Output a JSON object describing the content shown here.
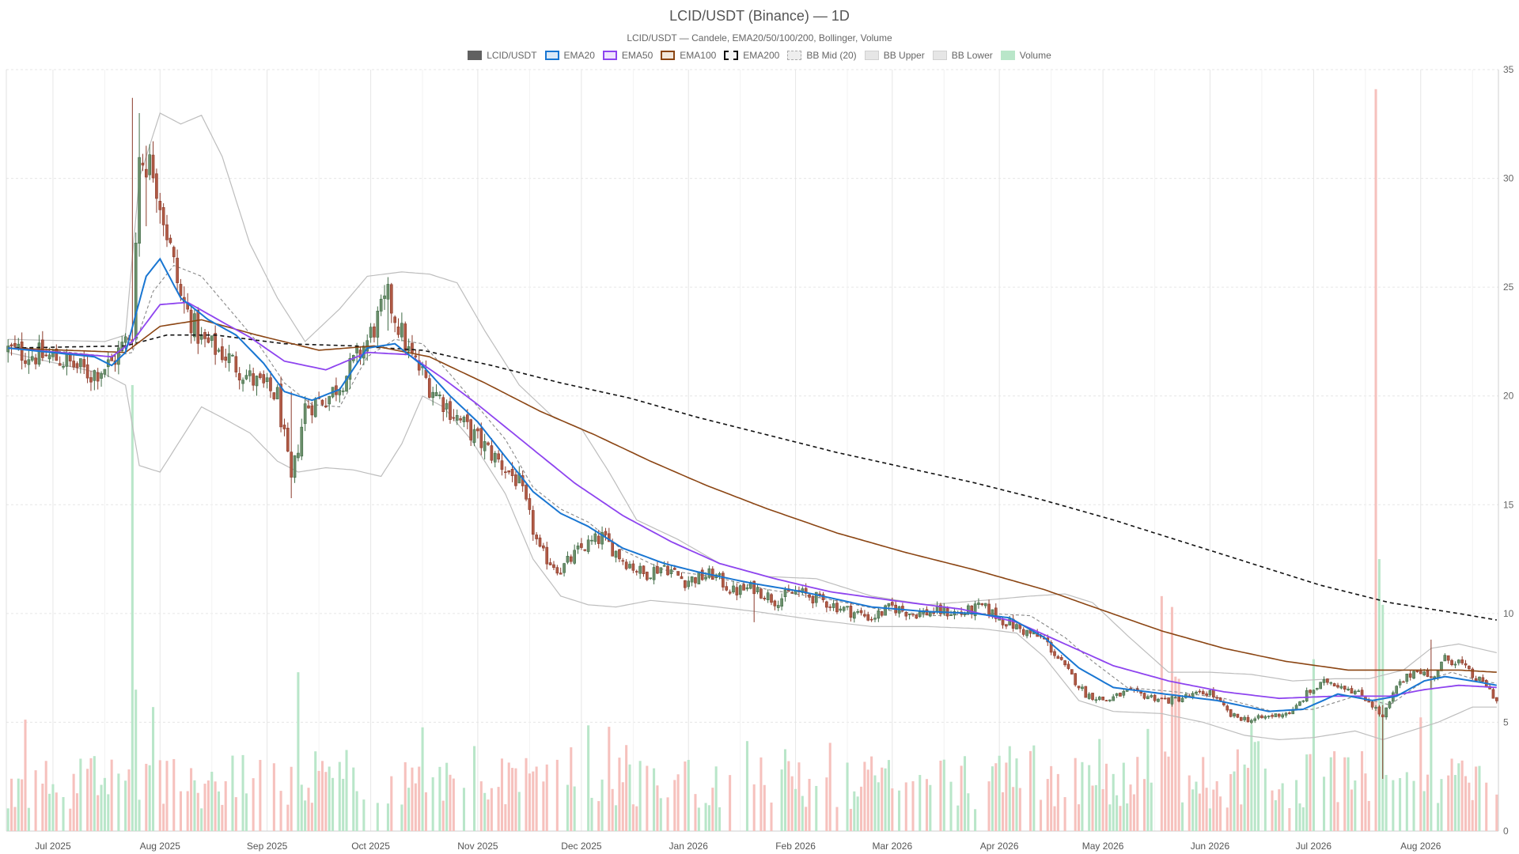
{
  "header": {
    "title": "LCID/USDT (Binance) — 1D",
    "subtitle": "LCID/USDT — Candele, EMA20/50/100/200, Bollinger, Volume"
  },
  "legend": [
    {
      "label": "LCID/USDT",
      "swatch": "candle"
    },
    {
      "label": "EMA20",
      "swatch": "ema20"
    },
    {
      "label": "EMA50",
      "swatch": "ema50"
    },
    {
      "label": "EMA100",
      "swatch": "ema100"
    },
    {
      "label": "EMA200",
      "swatch": "ema200"
    },
    {
      "label": "BB Mid (20)",
      "swatch": "bbmid"
    },
    {
      "label": "BB Upper",
      "swatch": "bbband"
    },
    {
      "label": "BB Lower",
      "swatch": "bbband"
    },
    {
      "label": "Volume",
      "swatch": "volume"
    }
  ],
  "colors": {
    "up": "#2e7d32",
    "down": "#c62828",
    "up_fill": "#6b8f6b",
    "down_fill": "#b05a45",
    "ema20": "#1976d2",
    "ema50": "#8e44ef",
    "ema100": "#8b4513",
    "ema200": "#111111",
    "bb": "#bdbdbd",
    "bbmid": "#888888",
    "vol_up": "#b9e6c9",
    "vol_down": "#f6c1bd",
    "grid": "#e6e6e6"
  },
  "chart_data": {
    "type": "candlestick",
    "interval": "1D",
    "ylim": [
      0,
      35
    ],
    "y_ticks": [
      0,
      5,
      10,
      15,
      20,
      25,
      30,
      35
    ],
    "x_tick_labels": [
      "Jul 2025",
      "Aug 2025",
      "Sep 2025",
      "Oct 2025",
      "Nov 2025",
      "Dec 2025",
      "Jan 2026",
      "Feb 2026",
      "Mar 2026",
      "Apr 2026",
      "May 2026",
      "Jun 2026",
      "Jul 2026",
      "Aug 2026"
    ],
    "x_tick_days": [
      13,
      44,
      75,
      105,
      136,
      166,
      197,
      228,
      256,
      287,
      317,
      348,
      378,
      409
    ],
    "day_count": 432,
    "close_anchors": [
      [
        0,
        22.1
      ],
      [
        15,
        21.7
      ],
      [
        24,
        21.0
      ],
      [
        30,
        21.5
      ],
      [
        36,
        23.0
      ],
      [
        38,
        31.0
      ],
      [
        42,
        30.5
      ],
      [
        46,
        27.5
      ],
      [
        50,
        24.5
      ],
      [
        56,
        22.5
      ],
      [
        62,
        22.0
      ],
      [
        70,
        20.8
      ],
      [
        78,
        20.0
      ],
      [
        82,
        16.0
      ],
      [
        86,
        19.5
      ],
      [
        93,
        20.0
      ],
      [
        98,
        21.0
      ],
      [
        104,
        22.5
      ],
      [
        110,
        24.5
      ],
      [
        116,
        22.0
      ],
      [
        122,
        20.5
      ],
      [
        130,
        19.0
      ],
      [
        136,
        18.0
      ],
      [
        142,
        17.0
      ],
      [
        148,
        16.0
      ],
      [
        154,
        12.8
      ],
      [
        160,
        12.0
      ],
      [
        166,
        13.0
      ],
      [
        172,
        13.5
      ],
      [
        178,
        12.5
      ],
      [
        184,
        11.8
      ],
      [
        190,
        12.2
      ],
      [
        196,
        11.5
      ],
      [
        204,
        11.8
      ],
      [
        210,
        11.0
      ],
      [
        216,
        11.2
      ],
      [
        222,
        10.6
      ],
      [
        228,
        11.0
      ],
      [
        234,
        10.7
      ],
      [
        242,
        10.2
      ],
      [
        250,
        9.8
      ],
      [
        256,
        10.3
      ],
      [
        262,
        10.0
      ],
      [
        270,
        10.1
      ],
      [
        276,
        10.0
      ],
      [
        282,
        10.3
      ],
      [
        288,
        9.7
      ],
      [
        294,
        9.2
      ],
      [
        300,
        8.8
      ],
      [
        306,
        7.5
      ],
      [
        312,
        6.3
      ],
      [
        318,
        6.0
      ],
      [
        324,
        6.4
      ],
      [
        330,
        6.2
      ],
      [
        336,
        6.0
      ],
      [
        342,
        6.2
      ],
      [
        348,
        6.4
      ],
      [
        354,
        5.3
      ],
      [
        360,
        5.1
      ],
      [
        366,
        5.3
      ],
      [
        372,
        5.5
      ],
      [
        376,
        6.3
      ],
      [
        382,
        6.9
      ],
      [
        388,
        6.6
      ],
      [
        394,
        6.0
      ],
      [
        398,
        5.2
      ],
      [
        402,
        6.6
      ],
      [
        408,
        7.5
      ],
      [
        412,
        7.0
      ],
      [
        416,
        7.9
      ],
      [
        420,
        7.8
      ],
      [
        424,
        7.1
      ],
      [
        428,
        6.7
      ],
      [
        431,
        6.0
      ]
    ],
    "ema20_anchors": [
      [
        0,
        22.2
      ],
      [
        25,
        21.8
      ],
      [
        30,
        21.4
      ],
      [
        34,
        22.0
      ],
      [
        40,
        25.5
      ],
      [
        44,
        26.3
      ],
      [
        50,
        24.5
      ],
      [
        58,
        23.5
      ],
      [
        66,
        22.8
      ],
      [
        74,
        21.5
      ],
      [
        80,
        20.2
      ],
      [
        88,
        19.8
      ],
      [
        96,
        20.3
      ],
      [
        104,
        22.2
      ],
      [
        112,
        22.4
      ],
      [
        120,
        21.4
      ],
      [
        128,
        20.0
      ],
      [
        136,
        18.8
      ],
      [
        144,
        17.2
      ],
      [
        152,
        15.6
      ],
      [
        160,
        14.6
      ],
      [
        168,
        14.0
      ],
      [
        178,
        13.0
      ],
      [
        190,
        12.3
      ],
      [
        200,
        11.9
      ],
      [
        215,
        11.4
      ],
      [
        230,
        11.0
      ],
      [
        250,
        10.3
      ],
      [
        265,
        10.1
      ],
      [
        280,
        10.0
      ],
      [
        290,
        9.8
      ],
      [
        300,
        8.9
      ],
      [
        310,
        7.5
      ],
      [
        320,
        6.6
      ],
      [
        335,
        6.3
      ],
      [
        350,
        6.0
      ],
      [
        365,
        5.5
      ],
      [
        375,
        5.6
      ],
      [
        385,
        6.3
      ],
      [
        395,
        6.0
      ],
      [
        402,
        6.2
      ],
      [
        410,
        6.9
      ],
      [
        416,
        7.1
      ],
      [
        424,
        6.9
      ],
      [
        431,
        6.7
      ]
    ],
    "ema50_anchors": [
      [
        0,
        22.2
      ],
      [
        30,
        21.8
      ],
      [
        36,
        22.5
      ],
      [
        44,
        24.2
      ],
      [
        52,
        24.3
      ],
      [
        62,
        23.4
      ],
      [
        70,
        22.7
      ],
      [
        80,
        21.6
      ],
      [
        92,
        21.2
      ],
      [
        104,
        22.0
      ],
      [
        116,
        21.9
      ],
      [
        126,
        20.8
      ],
      [
        136,
        19.6
      ],
      [
        150,
        17.8
      ],
      [
        164,
        16.0
      ],
      [
        178,
        14.5
      ],
      [
        192,
        13.3
      ],
      [
        206,
        12.3
      ],
      [
        222,
        11.6
      ],
      [
        238,
        11.0
      ],
      [
        256,
        10.6
      ],
      [
        276,
        10.2
      ],
      [
        292,
        9.6
      ],
      [
        306,
        8.6
      ],
      [
        320,
        7.6
      ],
      [
        336,
        6.9
      ],
      [
        352,
        6.4
      ],
      [
        368,
        6.1
      ],
      [
        384,
        6.2
      ],
      [
        400,
        6.2
      ],
      [
        410,
        6.5
      ],
      [
        420,
        6.7
      ],
      [
        431,
        6.6
      ]
    ],
    "ema100_anchors": [
      [
        0,
        22.2
      ],
      [
        34,
        22.0
      ],
      [
        44,
        23.2
      ],
      [
        56,
        23.5
      ],
      [
        72,
        22.8
      ],
      [
        90,
        22.1
      ],
      [
        106,
        22.3
      ],
      [
        122,
        21.8
      ],
      [
        138,
        20.6
      ],
      [
        154,
        19.3
      ],
      [
        170,
        18.2
      ],
      [
        186,
        17.0
      ],
      [
        202,
        15.9
      ],
      [
        220,
        14.8
      ],
      [
        240,
        13.7
      ],
      [
        260,
        12.8
      ],
      [
        280,
        12.0
      ],
      [
        300,
        11.1
      ],
      [
        316,
        10.2
      ],
      [
        334,
        9.2
      ],
      [
        352,
        8.4
      ],
      [
        370,
        7.8
      ],
      [
        388,
        7.4
      ],
      [
        406,
        7.4
      ],
      [
        420,
        7.4
      ],
      [
        431,
        7.3
      ]
    ],
    "ema200_anchors": [
      [
        0,
        22.2
      ],
      [
        34,
        22.3
      ],
      [
        46,
        22.8
      ],
      [
        60,
        22.8
      ],
      [
        80,
        22.4
      ],
      [
        100,
        22.3
      ],
      [
        120,
        22.1
      ],
      [
        140,
        21.4
      ],
      [
        160,
        20.6
      ],
      [
        180,
        19.9
      ],
      [
        200,
        19.0
      ],
      [
        220,
        18.2
      ],
      [
        240,
        17.4
      ],
      [
        260,
        16.7
      ],
      [
        280,
        16.0
      ],
      [
        300,
        15.2
      ],
      [
        320,
        14.3
      ],
      [
        340,
        13.3
      ],
      [
        360,
        12.3
      ],
      [
        380,
        11.3
      ],
      [
        400,
        10.5
      ],
      [
        420,
        10.0
      ],
      [
        431,
        9.7
      ]
    ],
    "bb_upper_anchors": [
      [
        0,
        22.6
      ],
      [
        28,
        22.5
      ],
      [
        34,
        22.8
      ],
      [
        38,
        30.0
      ],
      [
        44,
        33.0
      ],
      [
        50,
        32.5
      ],
      [
        56,
        32.9
      ],
      [
        62,
        31.0
      ],
      [
        70,
        27.0
      ],
      [
        78,
        24.5
      ],
      [
        86,
        22.5
      ],
      [
        96,
        24.0
      ],
      [
        104,
        25.5
      ],
      [
        114,
        25.7
      ],
      [
        122,
        25.6
      ],
      [
        130,
        25.2
      ],
      [
        138,
        23.0
      ],
      [
        148,
        20.5
      ],
      [
        158,
        19.0
      ],
      [
        166,
        18.5
      ],
      [
        174,
        16.5
      ],
      [
        182,
        14.3
      ],
      [
        194,
        13.4
      ],
      [
        206,
        12.3
      ],
      [
        220,
        11.7
      ],
      [
        234,
        11.6
      ],
      [
        250,
        10.8
      ],
      [
        266,
        10.4
      ],
      [
        282,
        10.6
      ],
      [
        296,
        10.8
      ],
      [
        306,
        10.9
      ],
      [
        314,
        10.5
      ],
      [
        324,
        9.0
      ],
      [
        336,
        7.3
      ],
      [
        348,
        7.3
      ],
      [
        360,
        7.2
      ],
      [
        372,
        6.9
      ],
      [
        384,
        7.0
      ],
      [
        394,
        7.0
      ],
      [
        404,
        7.4
      ],
      [
        412,
        8.4
      ],
      [
        420,
        8.6
      ],
      [
        431,
        8.2
      ]
    ],
    "bb_lower_anchors": [
      [
        0,
        22.0
      ],
      [
        28,
        21.0
      ],
      [
        34,
        20.5
      ],
      [
        38,
        16.8
      ],
      [
        44,
        16.5
      ],
      [
        50,
        18.0
      ],
      [
        56,
        19.5
      ],
      [
        62,
        19.0
      ],
      [
        70,
        18.3
      ],
      [
        78,
        17.0
      ],
      [
        84,
        16.5
      ],
      [
        92,
        16.7
      ],
      [
        100,
        16.6
      ],
      [
        108,
        16.3
      ],
      [
        114,
        17.8
      ],
      [
        120,
        20.0
      ],
      [
        126,
        19.5
      ],
      [
        134,
        18.0
      ],
      [
        144,
        15.5
      ],
      [
        152,
        12.5
      ],
      [
        160,
        10.8
      ],
      [
        168,
        10.4
      ],
      [
        176,
        10.3
      ],
      [
        186,
        10.6
      ],
      [
        200,
        10.4
      ],
      [
        216,
        10.1
      ],
      [
        234,
        9.7
      ],
      [
        250,
        9.4
      ],
      [
        266,
        9.4
      ],
      [
        282,
        9.3
      ],
      [
        292,
        9.1
      ],
      [
        300,
        8.0
      ],
      [
        310,
        6.0
      ],
      [
        320,
        5.5
      ],
      [
        334,
        5.4
      ],
      [
        346,
        5.0
      ],
      [
        358,
        4.4
      ],
      [
        368,
        4.2
      ],
      [
        378,
        4.3
      ],
      [
        390,
        4.6
      ],
      [
        398,
        4.2
      ],
      [
        406,
        4.6
      ],
      [
        414,
        5.0
      ],
      [
        424,
        5.7
      ],
      [
        431,
        5.7
      ]
    ],
    "bb_mid_anchors": [
      [
        0,
        22.3
      ],
      [
        30,
        21.8
      ],
      [
        36,
        22.0
      ],
      [
        42,
        24.8
      ],
      [
        48,
        26.0
      ],
      [
        56,
        25.5
      ],
      [
        64,
        24.0
      ],
      [
        72,
        22.5
      ],
      [
        80,
        20.6
      ],
      [
        88,
        19.6
      ],
      [
        96,
        19.5
      ],
      [
        104,
        21.8
      ],
      [
        112,
        22.6
      ],
      [
        120,
        22.4
      ],
      [
        128,
        21.0
      ],
      [
        136,
        19.5
      ],
      [
        144,
        18.0
      ],
      [
        152,
        15.8
      ],
      [
        160,
        14.8
      ],
      [
        168,
        14.2
      ],
      [
        178,
        12.9
      ],
      [
        190,
        12.0
      ],
      [
        204,
        11.7
      ],
      [
        220,
        11.1
      ],
      [
        236,
        10.7
      ],
      [
        252,
        10.2
      ],
      [
        268,
        9.9
      ],
      [
        284,
        10.0
      ],
      [
        296,
        9.9
      ],
      [
        306,
        8.9
      ],
      [
        314,
        7.8
      ],
      [
        324,
        6.6
      ],
      [
        338,
        6.4
      ],
      [
        352,
        6.1
      ],
      [
        366,
        5.5
      ],
      [
        378,
        5.6
      ],
      [
        390,
        6.2
      ],
      [
        400,
        5.8
      ],
      [
        410,
        6.9
      ],
      [
        418,
        7.3
      ],
      [
        426,
        6.9
      ],
      [
        431,
        6.8
      ]
    ],
    "volume_ylim": [
      0,
      35
    ],
    "volume_spikes": [
      [
        36,
        20.5,
        "up"
      ],
      [
        37,
        6.5,
        "up"
      ],
      [
        42,
        5.7,
        "up"
      ],
      [
        84,
        7.3,
        "up"
      ],
      [
        334,
        10.8,
        "down"
      ],
      [
        337,
        10.3,
        "down"
      ],
      [
        378,
        7.9,
        "up"
      ],
      [
        396,
        34.1,
        "down"
      ],
      [
        397,
        12.5,
        "up"
      ],
      [
        398,
        10.4,
        "up"
      ],
      [
        412,
        7.0,
        "up"
      ],
      [
        338,
        7.1,
        "down"
      ],
      [
        339,
        7.0,
        "down"
      ]
    ]
  }
}
